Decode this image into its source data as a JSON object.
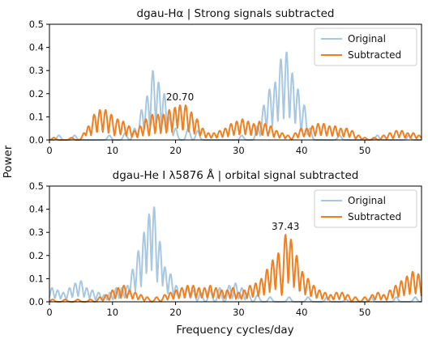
{
  "chart_data": [
    {
      "type": "line",
      "title": "dgau-Hα | Strong signals subtracted",
      "xlabel": "",
      "ylabel": "Power",
      "xlim": [
        0,
        59
      ],
      "ylim": [
        0,
        0.5
      ],
      "xticks": [
        "0",
        "10",
        "20",
        "30",
        "40",
        "50"
      ],
      "yticks": [
        "0.0",
        "0.1",
        "0.2",
        "0.3",
        "0.4",
        "0.5"
      ],
      "legend_position": "top-right",
      "annotation": {
        "text": "20.70",
        "x": 20.7,
        "y": 0.15
      },
      "series": [
        {
          "name": "Original",
          "color": "#a7c8e0",
          "peaks": [
            {
              "x": 1.5,
              "y": 0.02
            },
            {
              "x": 4.0,
              "y": 0.02
            },
            {
              "x": 9.5,
              "y": 0.02
            },
            {
              "x": 12.0,
              "y": 0.03
            },
            {
              "x": 13.5,
              "y": 0.05
            },
            {
              "x": 14.6,
              "y": 0.13
            },
            {
              "x": 15.5,
              "y": 0.19
            },
            {
              "x": 16.4,
              "y": 0.3
            },
            {
              "x": 17.3,
              "y": 0.25
            },
            {
              "x": 18.2,
              "y": 0.2
            },
            {
              "x": 19.1,
              "y": 0.1
            },
            {
              "x": 20.0,
              "y": 0.05
            },
            {
              "x": 22.0,
              "y": 0.05
            },
            {
              "x": 23.5,
              "y": 0.04
            },
            {
              "x": 30.5,
              "y": 0.02
            },
            {
              "x": 33.0,
              "y": 0.06
            },
            {
              "x": 34.0,
              "y": 0.15
            },
            {
              "x": 34.9,
              "y": 0.22
            },
            {
              "x": 35.8,
              "y": 0.25
            },
            {
              "x": 36.7,
              "y": 0.35
            },
            {
              "x": 37.6,
              "y": 0.38
            },
            {
              "x": 38.5,
              "y": 0.29
            },
            {
              "x": 39.4,
              "y": 0.22
            },
            {
              "x": 40.4,
              "y": 0.15
            },
            {
              "x": 41.3,
              "y": 0.05
            },
            {
              "x": 46.0,
              "y": 0.02
            },
            {
              "x": 52.0,
              "y": 0.02
            },
            {
              "x": 57.0,
              "y": 0.02
            }
          ]
        },
        {
          "name": "Subtracted",
          "color": "#f07f20",
          "peaks": [
            {
              "x": 0.7,
              "y": 0.01
            },
            {
              "x": 3.5,
              "y": 0.01
            },
            {
              "x": 5.5,
              "y": 0.03
            },
            {
              "x": 6.2,
              "y": 0.06
            },
            {
              "x": 7.1,
              "y": 0.11
            },
            {
              "x": 8.0,
              "y": 0.13
            },
            {
              "x": 8.9,
              "y": 0.13
            },
            {
              "x": 9.8,
              "y": 0.11
            },
            {
              "x": 10.8,
              "y": 0.09
            },
            {
              "x": 11.7,
              "y": 0.08
            },
            {
              "x": 12.6,
              "y": 0.06
            },
            {
              "x": 13.5,
              "y": 0.04
            },
            {
              "x": 14.4,
              "y": 0.06
            },
            {
              "x": 15.3,
              "y": 0.09
            },
            {
              "x": 16.3,
              "y": 0.11
            },
            {
              "x": 17.2,
              "y": 0.11
            },
            {
              "x": 18.1,
              "y": 0.11
            },
            {
              "x": 19.0,
              "y": 0.13
            },
            {
              "x": 19.9,
              "y": 0.14
            },
            {
              "x": 20.7,
              "y": 0.15
            },
            {
              "x": 21.6,
              "y": 0.15
            },
            {
              "x": 22.5,
              "y": 0.12
            },
            {
              "x": 23.4,
              "y": 0.09
            },
            {
              "x": 24.3,
              "y": 0.05
            },
            {
              "x": 25.2,
              "y": 0.03
            },
            {
              "x": 26.1,
              "y": 0.03
            },
            {
              "x": 27.0,
              "y": 0.04
            },
            {
              "x": 27.9,
              "y": 0.05
            },
            {
              "x": 28.8,
              "y": 0.07
            },
            {
              "x": 29.7,
              "y": 0.08
            },
            {
              "x": 30.6,
              "y": 0.09
            },
            {
              "x": 31.5,
              "y": 0.08
            },
            {
              "x": 32.4,
              "y": 0.07
            },
            {
              "x": 33.3,
              "y": 0.08
            },
            {
              "x": 34.2,
              "y": 0.07
            },
            {
              "x": 35.1,
              "y": 0.06
            },
            {
              "x": 36.0,
              "y": 0.04
            },
            {
              "x": 36.9,
              "y": 0.03
            },
            {
              "x": 37.8,
              "y": 0.02
            },
            {
              "x": 39.0,
              "y": 0.03
            },
            {
              "x": 39.9,
              "y": 0.05
            },
            {
              "x": 40.8,
              "y": 0.05
            },
            {
              "x": 41.7,
              "y": 0.06
            },
            {
              "x": 42.6,
              "y": 0.07
            },
            {
              "x": 43.5,
              "y": 0.07
            },
            {
              "x": 44.4,
              "y": 0.06
            },
            {
              "x": 45.3,
              "y": 0.06
            },
            {
              "x": 46.2,
              "y": 0.05
            },
            {
              "x": 47.1,
              "y": 0.05
            },
            {
              "x": 48.0,
              "y": 0.04
            },
            {
              "x": 49.0,
              "y": 0.02
            },
            {
              "x": 50.0,
              "y": 0.01
            },
            {
              "x": 51.5,
              "y": 0.01
            },
            {
              "x": 53.0,
              "y": 0.02
            },
            {
              "x": 54.0,
              "y": 0.03
            },
            {
              "x": 55.0,
              "y": 0.04
            },
            {
              "x": 55.9,
              "y": 0.04
            },
            {
              "x": 56.8,
              "y": 0.03
            },
            {
              "x": 57.7,
              "y": 0.03
            },
            {
              "x": 58.6,
              "y": 0.02
            }
          ]
        }
      ]
    },
    {
      "type": "line",
      "title": "dgau-He I λ5876 Å | orbital signal subtracted",
      "xlabel": "Frequency cycles/day",
      "ylabel": "Power",
      "xlim": [
        0,
        59
      ],
      "ylim": [
        0,
        0.5
      ],
      "xticks": [
        "0",
        "10",
        "20",
        "30",
        "40",
        "50"
      ],
      "yticks": [
        "0.0",
        "0.1",
        "0.2",
        "0.3",
        "0.4",
        "0.5"
      ],
      "legend_position": "top-right",
      "annotation": {
        "text": "37.43",
        "x": 37.43,
        "y": 0.29
      },
      "series": [
        {
          "name": "Original",
          "color": "#a7c8e0",
          "peaks": [
            {
              "x": 0.4,
              "y": 0.06
            },
            {
              "x": 1.3,
              "y": 0.05
            },
            {
              "x": 2.2,
              "y": 0.04
            },
            {
              "x": 3.2,
              "y": 0.06
            },
            {
              "x": 4.1,
              "y": 0.08
            },
            {
              "x": 5.0,
              "y": 0.09
            },
            {
              "x": 5.9,
              "y": 0.06
            },
            {
              "x": 6.8,
              "y": 0.05
            },
            {
              "x": 7.8,
              "y": 0.04
            },
            {
              "x": 8.7,
              "y": 0.03
            },
            {
              "x": 9.6,
              "y": 0.04
            },
            {
              "x": 10.6,
              "y": 0.06
            },
            {
              "x": 11.5,
              "y": 0.06
            },
            {
              "x": 12.4,
              "y": 0.07
            },
            {
              "x": 13.2,
              "y": 0.14
            },
            {
              "x": 14.1,
              "y": 0.22
            },
            {
              "x": 15.0,
              "y": 0.3
            },
            {
              "x": 15.8,
              "y": 0.38
            },
            {
              "x": 16.6,
              "y": 0.41
            },
            {
              "x": 17.5,
              "y": 0.26
            },
            {
              "x": 18.3,
              "y": 0.15
            },
            {
              "x": 19.2,
              "y": 0.12
            },
            {
              "x": 20.1,
              "y": 0.07
            },
            {
              "x": 21.0,
              "y": 0.06
            },
            {
              "x": 21.9,
              "y": 0.06
            },
            {
              "x": 22.8,
              "y": 0.05
            },
            {
              "x": 24.0,
              "y": 0.04
            },
            {
              "x": 25.5,
              "y": 0.05
            },
            {
              "x": 27.0,
              "y": 0.06
            },
            {
              "x": 28.5,
              "y": 0.07
            },
            {
              "x": 29.5,
              "y": 0.08
            },
            {
              "x": 30.5,
              "y": 0.06
            },
            {
              "x": 31.5,
              "y": 0.04
            },
            {
              "x": 33.0,
              "y": 0.03
            },
            {
              "x": 35.0,
              "y": 0.02
            },
            {
              "x": 38.0,
              "y": 0.02
            },
            {
              "x": 41.0,
              "y": 0.02
            },
            {
              "x": 44.0,
              "y": 0.02
            },
            {
              "x": 47.0,
              "y": 0.01
            },
            {
              "x": 51.0,
              "y": 0.02
            },
            {
              "x": 55.0,
              "y": 0.02
            },
            {
              "x": 58.0,
              "y": 0.02
            }
          ]
        },
        {
          "name": "Subtracted",
          "color": "#f07f20",
          "peaks": [
            {
              "x": 0.5,
              "y": 0.01
            },
            {
              "x": 2.5,
              "y": 0.01
            },
            {
              "x": 4.5,
              "y": 0.01
            },
            {
              "x": 6.5,
              "y": 0.01
            },
            {
              "x": 8.0,
              "y": 0.02
            },
            {
              "x": 9.0,
              "y": 0.03
            },
            {
              "x": 10.0,
              "y": 0.05
            },
            {
              "x": 10.9,
              "y": 0.06
            },
            {
              "x": 11.8,
              "y": 0.07
            },
            {
              "x": 12.7,
              "y": 0.05
            },
            {
              "x": 13.6,
              "y": 0.04
            },
            {
              "x": 14.5,
              "y": 0.03
            },
            {
              "x": 15.5,
              "y": 0.02
            },
            {
              "x": 17.0,
              "y": 0.02
            },
            {
              "x": 18.3,
              "y": 0.03
            },
            {
              "x": 19.2,
              "y": 0.04
            },
            {
              "x": 20.1,
              "y": 0.05
            },
            {
              "x": 21.0,
              "y": 0.06
            },
            {
              "x": 21.9,
              "y": 0.07
            },
            {
              "x": 22.8,
              "y": 0.07
            },
            {
              "x": 23.7,
              "y": 0.06
            },
            {
              "x": 24.6,
              "y": 0.06
            },
            {
              "x": 25.5,
              "y": 0.07
            },
            {
              "x": 26.4,
              "y": 0.06
            },
            {
              "x": 27.3,
              "y": 0.05
            },
            {
              "x": 28.2,
              "y": 0.05
            },
            {
              "x": 29.1,
              "y": 0.06
            },
            {
              "x": 30.0,
              "y": 0.04
            },
            {
              "x": 30.9,
              "y": 0.05
            },
            {
              "x": 31.8,
              "y": 0.07
            },
            {
              "x": 32.7,
              "y": 0.08
            },
            {
              "x": 33.6,
              "y": 0.1
            },
            {
              "x": 34.5,
              "y": 0.14
            },
            {
              "x": 35.4,
              "y": 0.18
            },
            {
              "x": 36.3,
              "y": 0.21
            },
            {
              "x": 37.43,
              "y": 0.29
            },
            {
              "x": 38.3,
              "y": 0.27
            },
            {
              "x": 39.2,
              "y": 0.2
            },
            {
              "x": 40.1,
              "y": 0.13
            },
            {
              "x": 41.0,
              "y": 0.1
            },
            {
              "x": 41.9,
              "y": 0.07
            },
            {
              "x": 42.8,
              "y": 0.05
            },
            {
              "x": 43.7,
              "y": 0.04
            },
            {
              "x": 44.6,
              "y": 0.03
            },
            {
              "x": 45.5,
              "y": 0.04
            },
            {
              "x": 46.4,
              "y": 0.04
            },
            {
              "x": 47.3,
              "y": 0.03
            },
            {
              "x": 48.5,
              "y": 0.02
            },
            {
              "x": 50.0,
              "y": 0.02
            },
            {
              "x": 51.2,
              "y": 0.03
            },
            {
              "x": 52.1,
              "y": 0.04
            },
            {
              "x": 53.0,
              "y": 0.03
            },
            {
              "x": 54.0,
              "y": 0.05
            },
            {
              "x": 54.9,
              "y": 0.07
            },
            {
              "x": 55.8,
              "y": 0.09
            },
            {
              "x": 56.7,
              "y": 0.11
            },
            {
              "x": 57.6,
              "y": 0.13
            },
            {
              "x": 58.5,
              "y": 0.12
            }
          ]
        }
      ]
    }
  ]
}
